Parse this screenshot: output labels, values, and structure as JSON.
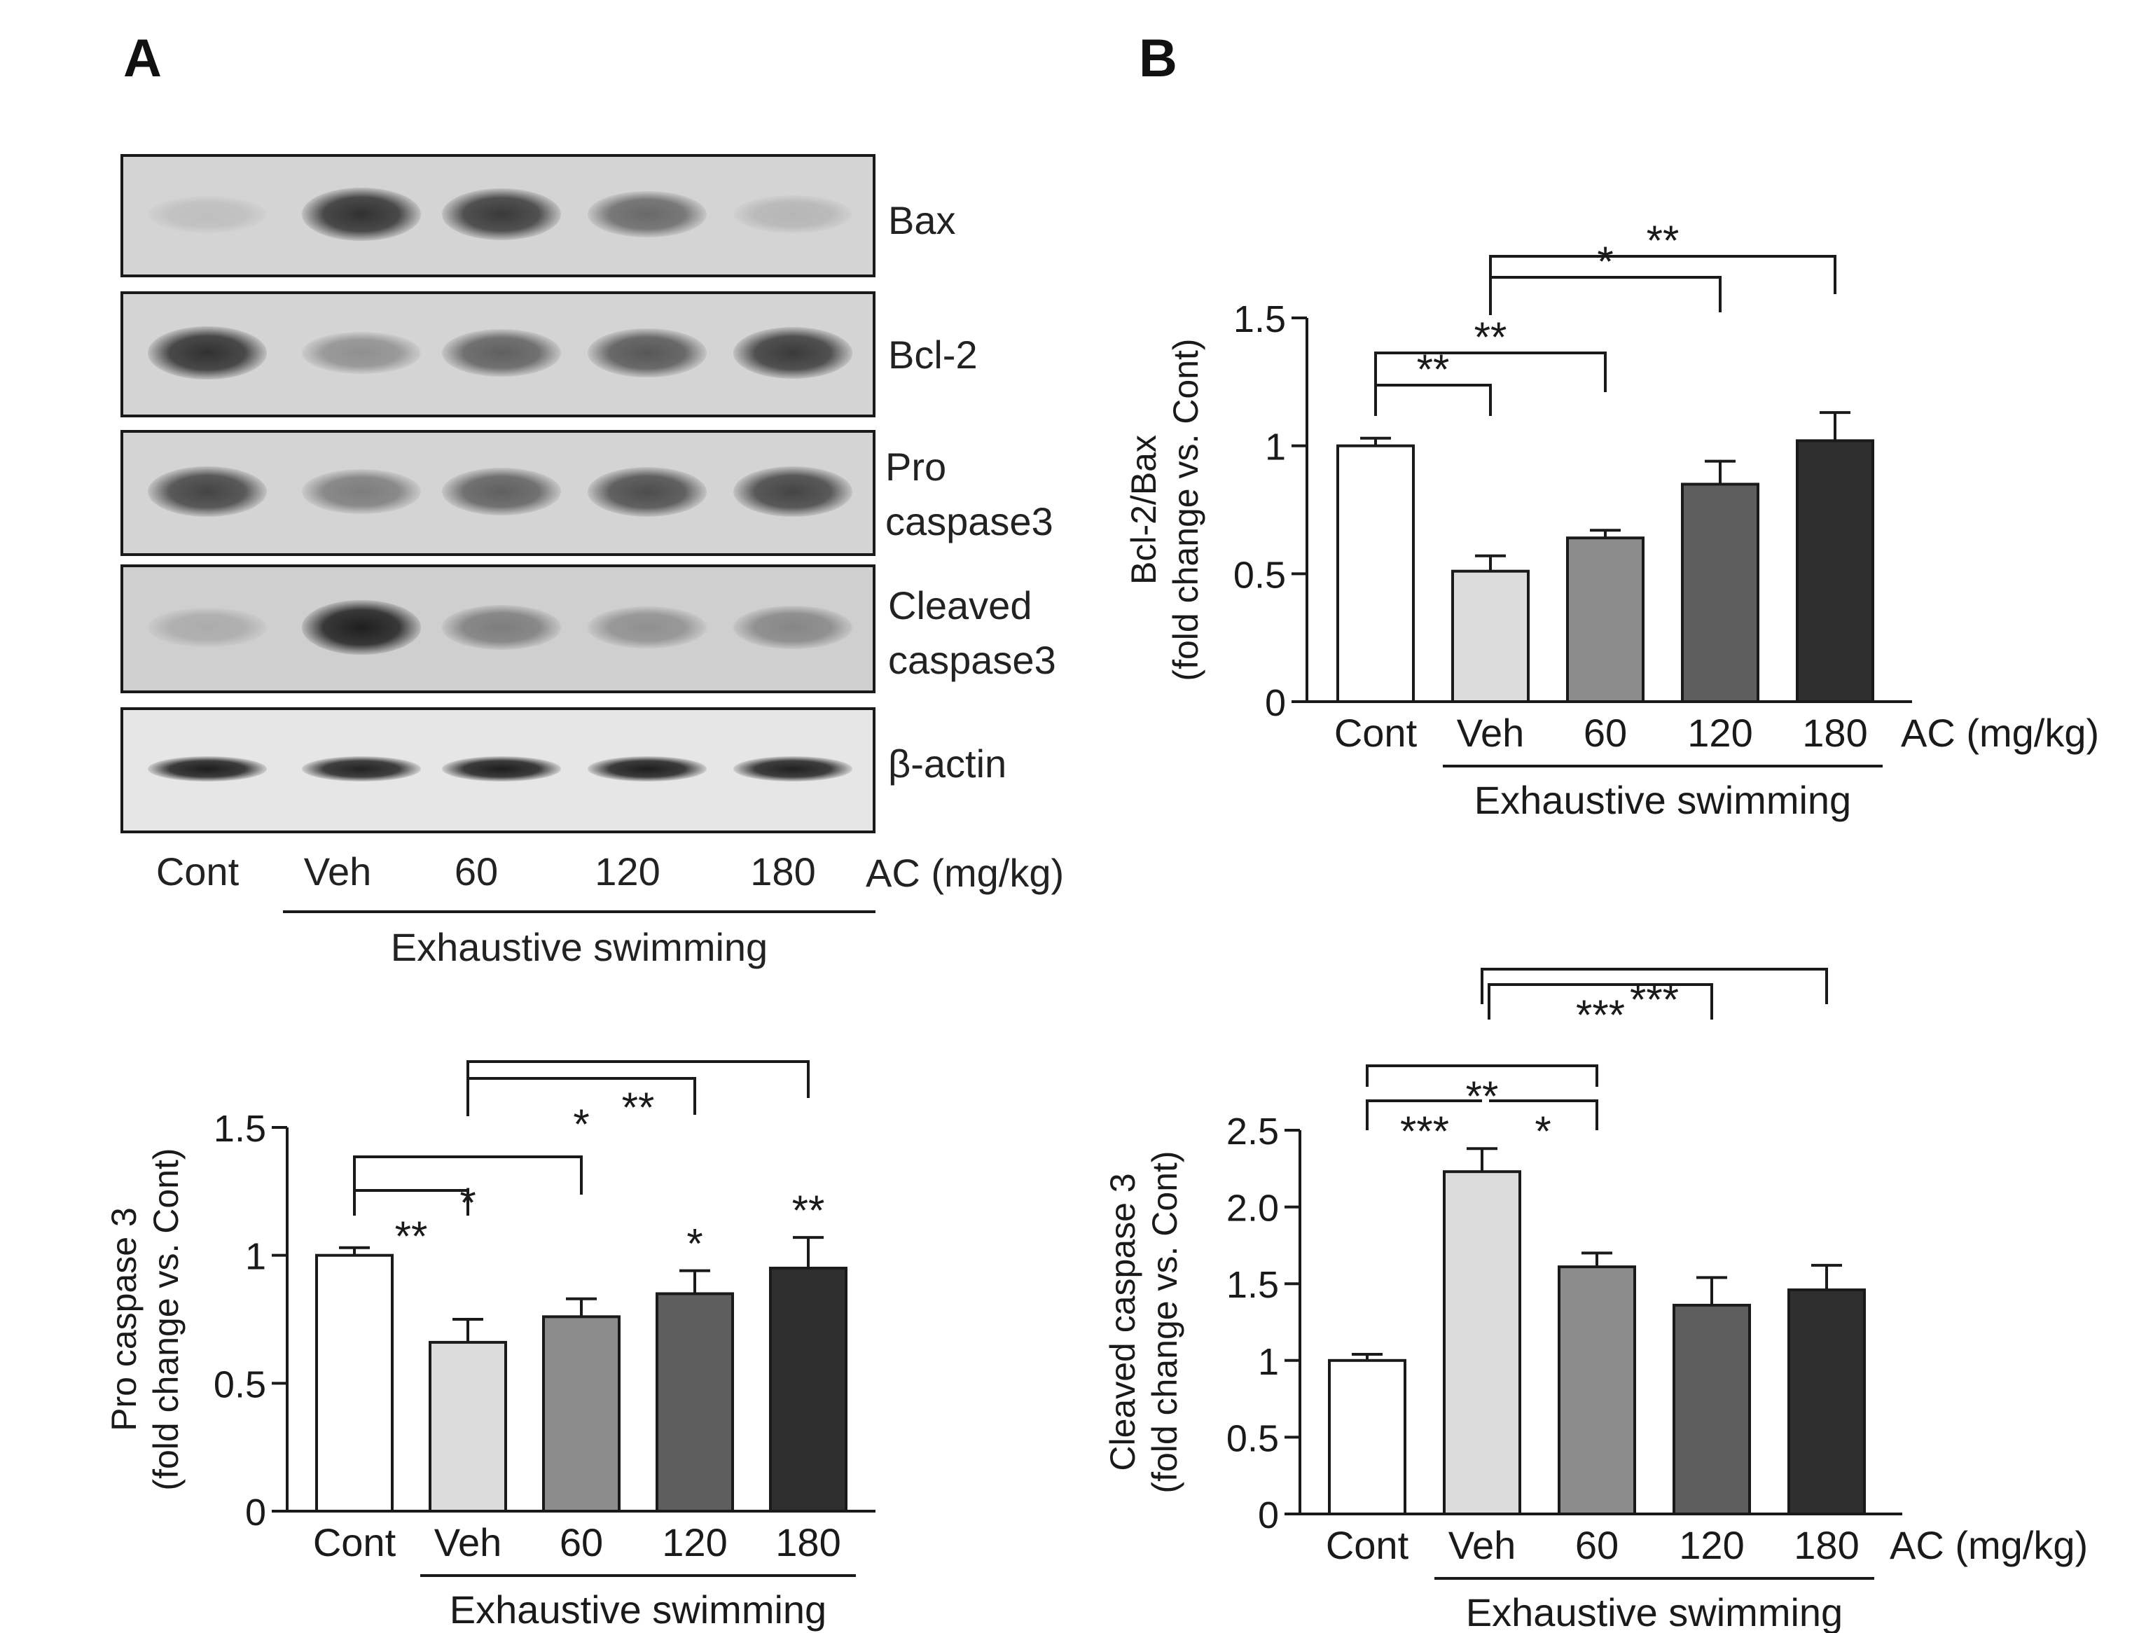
{
  "panels": [
    "A",
    "B"
  ],
  "blot": {
    "proteins": [
      {
        "name": "Bax",
        "intensity": [
          0.1,
          0.85,
          0.8,
          0.55,
          0.15
        ]
      },
      {
        "name": "Bcl-2",
        "intensity": [
          0.85,
          0.35,
          0.6,
          0.65,
          0.8
        ]
      },
      {
        "name": "Pro caspase3",
        "intensity": [
          0.75,
          0.45,
          0.6,
          0.7,
          0.75
        ]
      },
      {
        "name": "Cleaved caspase3",
        "intensity": [
          0.2,
          0.95,
          0.45,
          0.35,
          0.4
        ]
      },
      {
        "name": "β-actin",
        "intensity": [
          0.95,
          0.92,
          0.95,
          0.95,
          0.93
        ]
      }
    ],
    "lanes": [
      "Cont",
      "Veh",
      "60",
      "120",
      "180"
    ],
    "dose_label": "AC (mg/kg)",
    "group_label": "Exhaustive swimming"
  },
  "chart_data": [
    {
      "type": "bar",
      "panel": "B",
      "categories": [
        "Cont",
        "Veh",
        "60",
        "120",
        "180"
      ],
      "values": [
        1.0,
        0.51,
        0.64,
        0.85,
        1.02
      ],
      "errors": [
        0.03,
        0.06,
        0.03,
        0.09,
        0.11
      ],
      "ylabel_line1": "Bcl-2/Bax",
      "ylabel_line2": "(fold change vs. Cont)",
      "ylim": [
        0,
        1.5
      ],
      "yticks": [
        "0",
        "0.5",
        "1",
        "1.5"
      ],
      "xlabel_extra": "AC (mg/kg)",
      "group_label": "Exhaustive swimming",
      "bar_colors": [
        "#ffffff",
        "#dcdcdc",
        "#8c8c8c",
        "#5e5e5e",
        "#2f2f2f"
      ],
      "significance": [
        {
          "from": 0,
          "to": 1,
          "label": "**"
        },
        {
          "from": 0,
          "to": 2,
          "label": "**"
        },
        {
          "from": 1,
          "to": 3,
          "label": "*"
        },
        {
          "from": 1,
          "to": 4,
          "label": "**"
        }
      ],
      "bar_marks": []
    },
    {
      "type": "bar",
      "panel": "A",
      "categories": [
        "Cont",
        "Veh",
        "60",
        "120",
        "180"
      ],
      "values": [
        1.0,
        0.66,
        0.76,
        0.85,
        0.95
      ],
      "errors": [
        0.03,
        0.09,
        0.07,
        0.09,
        0.12
      ],
      "ylabel_line1": "Pro caspase 3",
      "ylabel_line2": "(fold change vs. Cont)",
      "ylim": [
        0,
        1.5
      ],
      "yticks": [
        "0",
        "0.5",
        "1",
        "1.5"
      ],
      "xlabel_extra": "",
      "group_label": "Exhaustive swimming",
      "bar_colors": [
        "#ffffff",
        "#dcdcdc",
        "#8c8c8c",
        "#5e5e5e",
        "#2f2f2f"
      ],
      "significance": [
        {
          "from": 0,
          "to": 1,
          "label": "**"
        },
        {
          "from": 0,
          "to": 2,
          "label": "*"
        },
        {
          "from": 1,
          "to": 3,
          "label": "*"
        },
        {
          "from": 1,
          "to": 4,
          "label": "**"
        }
      ],
      "bar_marks": [
        {
          "bar": 3,
          "label": "*"
        },
        {
          "bar": 4,
          "label": "**"
        }
      ]
    },
    {
      "type": "bar",
      "panel": "B",
      "categories": [
        "Cont",
        "Veh",
        "60",
        "120",
        "180"
      ],
      "values": [
        1.0,
        2.23,
        1.61,
        1.36,
        1.46
      ],
      "errors": [
        0.04,
        0.15,
        0.09,
        0.18,
        0.16
      ],
      "ylabel_line1": "Cleaved caspase 3",
      "ylabel_line2": "(fold change vs. Cont)",
      "ylim": [
        0,
        2.5
      ],
      "yticks": [
        "0",
        "0.5",
        "1",
        "1.5",
        "2.0",
        "2.5"
      ],
      "xlabel_extra": "AC (mg/kg)",
      "group_label": "Exhaustive swimming",
      "bar_colors": [
        "#ffffff",
        "#dcdcdc",
        "#8c8c8c",
        "#5e5e5e",
        "#2f2f2f"
      ],
      "significance": [
        {
          "from": 0,
          "to": 1,
          "label": "***"
        },
        {
          "from": 1,
          "to": 2,
          "label": "*"
        },
        {
          "from": 0,
          "to": 2,
          "label": "**"
        },
        {
          "from": 1,
          "to": 3,
          "label": "***"
        },
        {
          "from": 1,
          "to": 4,
          "label": "***"
        }
      ],
      "bar_marks": []
    }
  ]
}
